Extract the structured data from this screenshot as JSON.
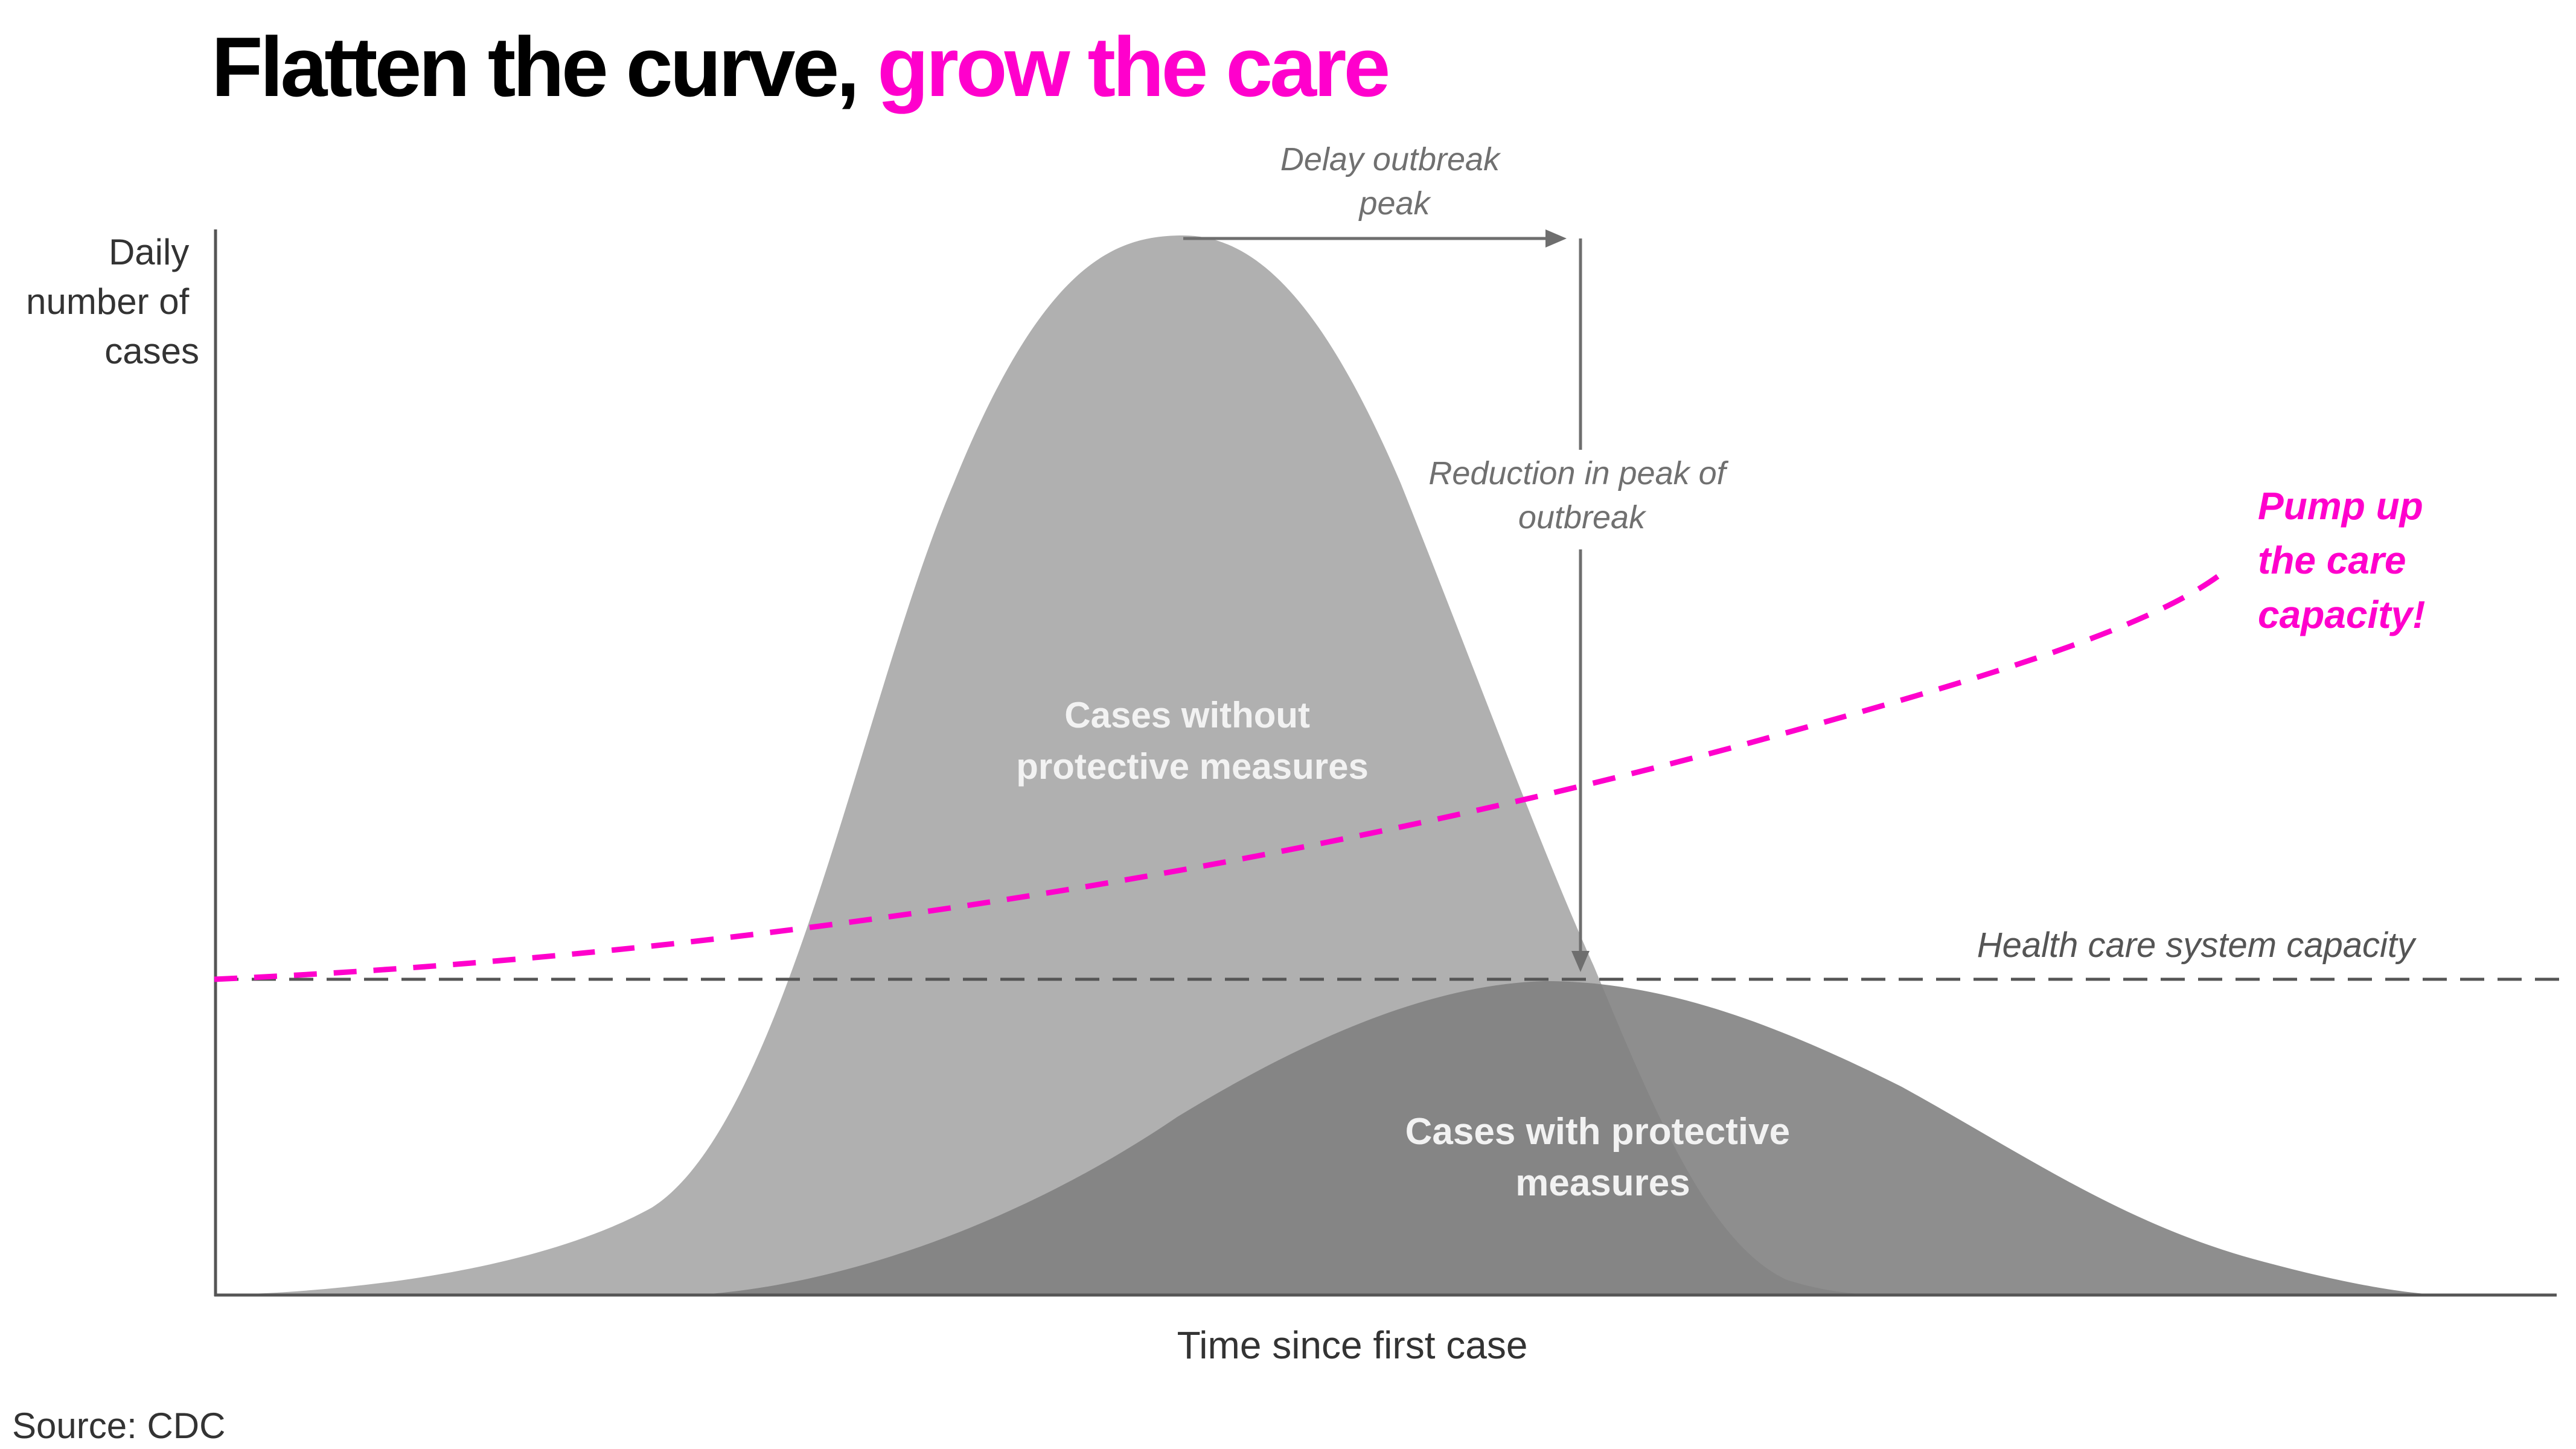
{
  "title": {
    "main": "Flatten the curve,",
    "accent": "grow the care"
  },
  "colors": {
    "accent": "#ff00cc",
    "curve_without": "#b0b0b0",
    "curve_with": "#7e7e7e",
    "overlap": "#8a8a8a",
    "annotation": "#707070",
    "axis": "#555555"
  },
  "diagram": {
    "y_axis_label": [
      "Daily",
      "number of",
      "cases"
    ],
    "x_axis_label": "Time since first case",
    "label_without": [
      "Cases without",
      "protective measures"
    ],
    "label_with": [
      "Cases with protective",
      "measures"
    ],
    "capacity_label": "Health care system capacity",
    "delay_label": [
      "Delay outbreak",
      "peak"
    ],
    "reduction_label": [
      "Reduction in peak of",
      "outbreak"
    ],
    "pump_label": [
      "Pump up",
      "the care",
      "capacity!"
    ]
  },
  "source": "Source: CDC"
}
